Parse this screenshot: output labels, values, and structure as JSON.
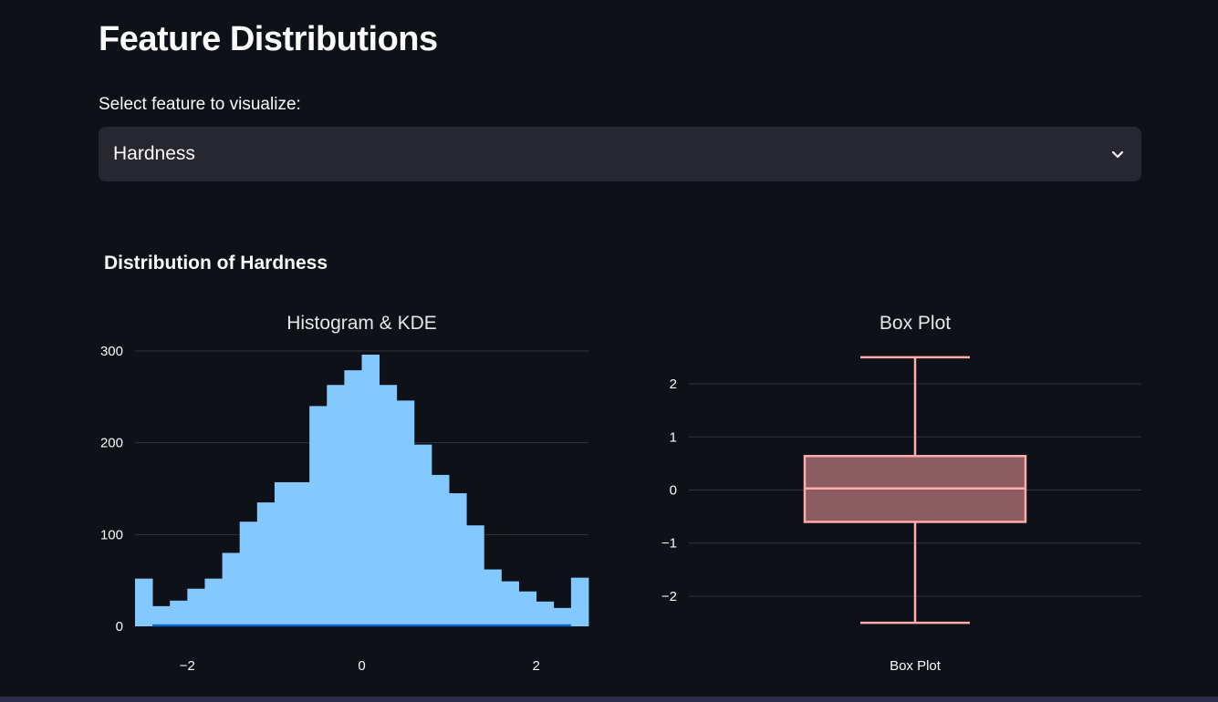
{
  "page": {
    "title": "Feature Distributions",
    "select_label": "Select feature to visualize:",
    "selected_feature": "Hardness",
    "section_title": "Distribution of Hardness"
  },
  "colors": {
    "background": "#0e1117",
    "select_bg": "#262730",
    "histogram_bar": "#83c9ff",
    "kde_line": "#0068c9",
    "box_stroke": "#ffabab",
    "box_fill": "#8b5c62",
    "grid": "#31333f"
  },
  "chart_data": [
    {
      "type": "bar",
      "subtype": "histogram",
      "title": "Histogram & KDE",
      "xlabel": "",
      "ylabel": "",
      "xlim": [
        -2.6,
        2.6
      ],
      "ylim": [
        0,
        300
      ],
      "x_ticks": [
        -2,
        0,
        2
      ],
      "x_tick_labels": [
        "−2",
        "0",
        "2"
      ],
      "y_ticks": [
        0,
        100,
        200,
        300
      ],
      "y_tick_labels": [
        "0",
        "100",
        "200",
        "300"
      ],
      "grid": true,
      "bin_edges": [
        -2.6,
        -2.4,
        -2.2,
        -2.0,
        -1.8,
        -1.6,
        -1.4,
        -1.2,
        -1.0,
        -0.8,
        -0.6,
        -0.4,
        -0.2,
        0.0,
        0.2,
        0.4,
        0.6,
        0.8,
        1.0,
        1.2,
        1.4,
        1.6,
        1.8,
        2.0,
        2.2,
        2.4,
        2.6
      ],
      "values": [
        52,
        22,
        28,
        41,
        52,
        80,
        114,
        135,
        157,
        157,
        240,
        263,
        279,
        296,
        263,
        246,
        198,
        165,
        145,
        110,
        62,
        49,
        38,
        27,
        20,
        53
      ],
      "kde_series": {
        "x": [
          -2.4,
          2.4
        ],
        "y": [
          0,
          0
        ]
      }
    },
    {
      "type": "box",
      "title": "Box Plot",
      "xlabel": "",
      "category": "Box Plot",
      "ylim": [
        -2.55,
        2.55
      ],
      "y_ticks": [
        -2,
        -1,
        0,
        1,
        2
      ],
      "y_tick_labels": [
        "−2",
        "−1",
        "0",
        "1",
        "2"
      ],
      "grid": true,
      "min": -2.5,
      "q1": -0.6,
      "median": 0.03,
      "q3": 0.64,
      "max": 2.5
    }
  ]
}
